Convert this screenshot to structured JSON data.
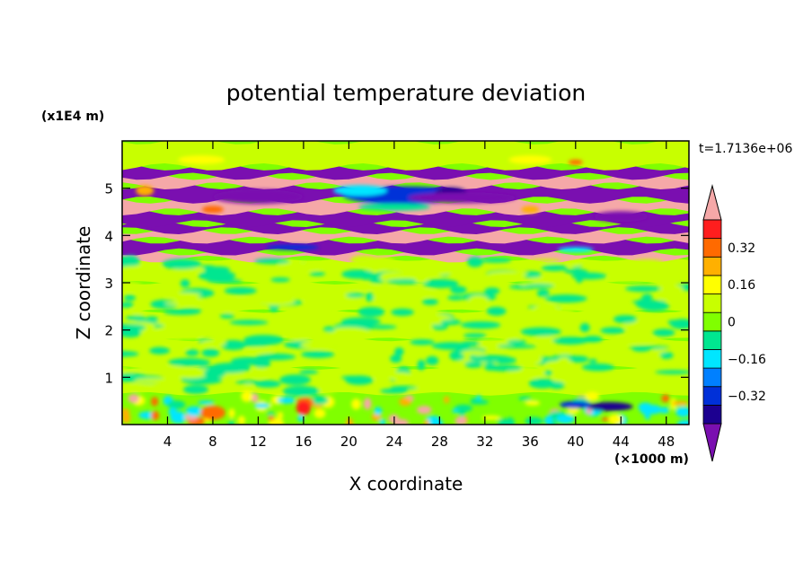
{
  "chart_data": {
    "type": "heatmap",
    "title": "potential temperature deviation",
    "xlabel": "X coordinate",
    "ylabel": "Z coordinate",
    "x_units": "(×1000 m)",
    "y_units": "(x1E4 m)",
    "time_label": "t=1.7136e+06",
    "xlim": [
      0,
      50
    ],
    "ylim": [
      0,
      6
    ],
    "x_ticks": [
      "4",
      "8",
      "12",
      "16",
      "20",
      "24",
      "28",
      "32",
      "36",
      "40",
      "44",
      "48"
    ],
    "y_ticks": [
      "1",
      "2",
      "3",
      "4",
      "5"
    ],
    "colorbar": {
      "labels": [
        "0.32",
        "0.16",
        "0",
        "−0.16",
        "−0.32"
      ],
      "levels": [
        -0.48,
        -0.4,
        -0.32,
        -0.24,
        -0.16,
        -0.08,
        0,
        0.08,
        0.16,
        0.24,
        0.32,
        0.4,
        0.48
      ],
      "colors": [
        "#7a0fb0",
        "#1c0090",
        "#0030d8",
        "#0080ff",
        "#00e6ff",
        "#00e690",
        "#80ff00",
        "#c8ff00",
        "#ffff00",
        "#ffb000",
        "#ff6a00",
        "#ff1e1e",
        "#f5a8a8"
      ],
      "extend": "both"
    },
    "bands": [
      {
        "z_range": [
          0,
          0.65
        ],
        "description_level": 0.04,
        "value": 0.04
      },
      {
        "z_range": [
          0.65,
          1.2
        ],
        "value": 0.08
      },
      {
        "z_range": [
          1.2,
          1.8
        ],
        "value": 0.06
      },
      {
        "z_range": [
          1.8,
          2.4
        ],
        "value": 0.08
      },
      {
        "z_range": [
          2.4,
          3.0
        ],
        "value": 0.05
      },
      {
        "z_range": [
          3.0,
          3.5
        ],
        "value": 0.07
      },
      {
        "z_range": [
          3.5,
          3.65
        ],
        "value": 0.48
      },
      {
        "z_range": [
          3.65,
          3.9
        ],
        "value": -0.48
      },
      {
        "z_range": [
          3.9,
          4.1
        ],
        "value": 0.48
      },
      {
        "z_range": [
          4.1,
          4.25
        ],
        "value": -0.48
      },
      {
        "z_range": [
          4.25,
          4.5
        ],
        "value": -0.48
      },
      {
        "z_range": [
          4.5,
          4.75
        ],
        "value": 0.48
      },
      {
        "z_range": [
          4.75,
          5.05
        ],
        "value": -0.48
      },
      {
        "z_range": [
          5.05,
          5.25
        ],
        "value": 0.48
      },
      {
        "z_range": [
          5.25,
          5.45
        ],
        "value": -0.48
      },
      {
        "z_range": [
          5.45,
          6.0
        ],
        "value": 0.05
      }
    ]
  }
}
